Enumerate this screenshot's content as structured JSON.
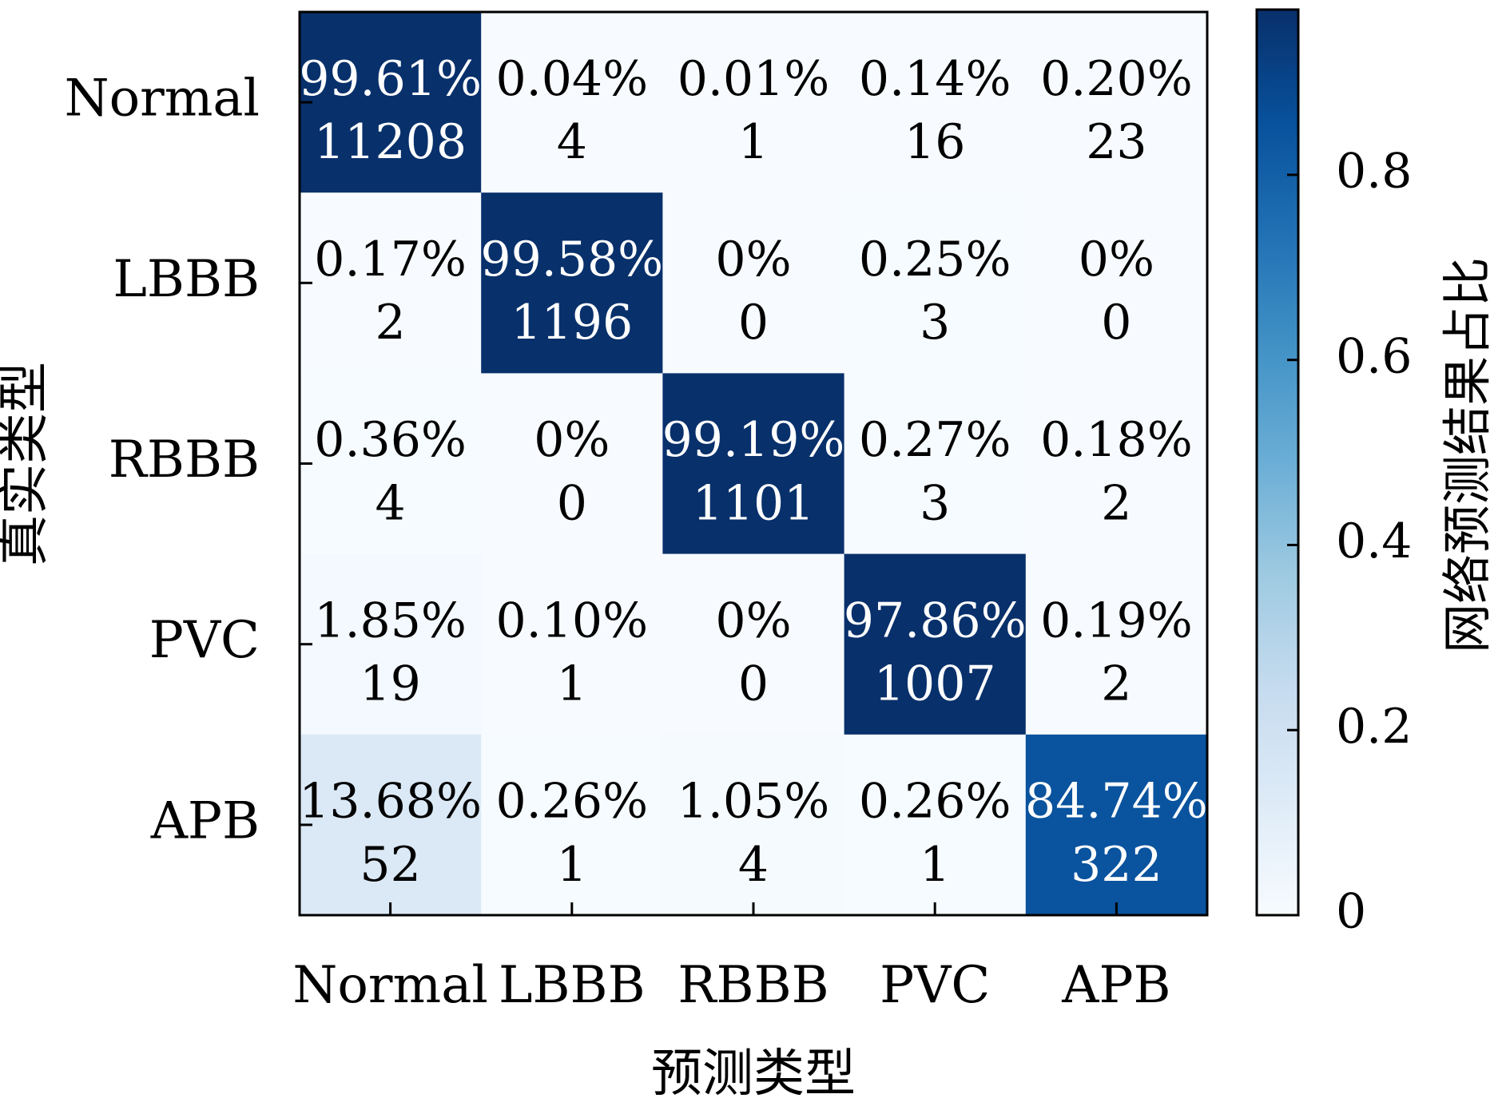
{
  "chart_data": {
    "type": "heatmap",
    "xlabel": "预测类型",
    "ylabel": "真实类型",
    "x_categories": [
      "Normal",
      "LBBB",
      "RBBB",
      "PVC",
      "APB"
    ],
    "y_categories": [
      "Normal",
      "LBBB",
      "RBBB",
      "PVC",
      "APB"
    ],
    "percent_labels": [
      [
        "99.61%",
        "0.04%",
        "0.01%",
        "0.14%",
        "0.20%"
      ],
      [
        "0.17%",
        "99.58%",
        "0%",
        "0.25%",
        "0%"
      ],
      [
        "0.36%",
        "0%",
        "99.19%",
        "0.27%",
        "0.18%"
      ],
      [
        "1.85%",
        "0.10%",
        "0%",
        "97.86%",
        "0.19%"
      ],
      [
        "13.68%",
        "0.26%",
        "1.05%",
        "0.26%",
        "84.74%"
      ]
    ],
    "counts": [
      [
        11208,
        4,
        1,
        16,
        23
      ],
      [
        2,
        1196,
        0,
        3,
        0
      ],
      [
        4,
        0,
        1101,
        3,
        2
      ],
      [
        19,
        1,
        0,
        1007,
        2
      ],
      [
        52,
        1,
        4,
        1,
        322
      ]
    ],
    "colorbar": {
      "label": "网络预测结果占比",
      "ticks": [
        "0",
        "0.2",
        "0.4",
        "0.6",
        "0.8"
      ],
      "tick_values": [
        0,
        0.2,
        0.4,
        0.6,
        0.8
      ],
      "range": [
        0,
        0.9786
      ],
      "colormap": "Blues"
    },
    "grid": false
  },
  "colors": {
    "low": "#f7fbff",
    "high": "#08306b"
  }
}
